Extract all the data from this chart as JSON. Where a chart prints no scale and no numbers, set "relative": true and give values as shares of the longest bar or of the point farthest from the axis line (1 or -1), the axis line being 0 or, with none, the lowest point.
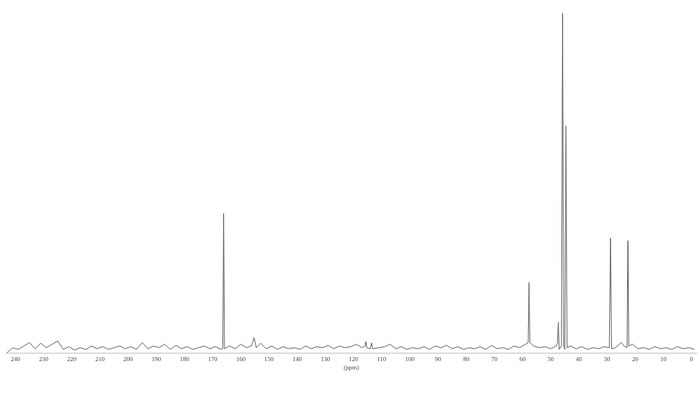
{
  "chart_data": {
    "type": "line",
    "relative": true,
    "xlabel": "(ppm)",
    "xlim": [
      243.5,
      -2
    ],
    "xticks": [
      240,
      230,
      220,
      210,
      200,
      190,
      180,
      170,
      160,
      150,
      140,
      130,
      120,
      110,
      100,
      90,
      80,
      70,
      60,
      50,
      40,
      30,
      20,
      10,
      0
    ],
    "marker": "none",
    "x": [
      243,
      241,
      239,
      237,
      235,
      233,
      231,
      229,
      227,
      225,
      223,
      221,
      219,
      217,
      215,
      213,
      211,
      209,
      207,
      205,
      203,
      201,
      199,
      197,
      195,
      193,
      191,
      189,
      187,
      185,
      183,
      181,
      179,
      177,
      175,
      173,
      171,
      169,
      167,
      166.4,
      166.1,
      165.8,
      164,
      162,
      160,
      158,
      156.2,
      155.3,
      154.5,
      153,
      151,
      149,
      147,
      145,
      143,
      141,
      139,
      137,
      135,
      133,
      131,
      129,
      127,
      125,
      123,
      121,
      119,
      117,
      115.9,
      115.6,
      115.3,
      114,
      113.6,
      113.2,
      111,
      109,
      107,
      105,
      103,
      101,
      99,
      97,
      95,
      93,
      91,
      89,
      87,
      85,
      83,
      81,
      79,
      77,
      75,
      73,
      71,
      69,
      67,
      65,
      63,
      61,
      59,
      58.0,
      57.7,
      57.4,
      56,
      54,
      52,
      50,
      48,
      47.6,
      47.3,
      47.0,
      46.2,
      45.8,
      45.4,
      45.0,
      44.6,
      44.2,
      43,
      41,
      39,
      37,
      35,
      33,
      31,
      29.2,
      28.8,
      28.4,
      27,
      25,
      24,
      22.9,
      22.6,
      22.3,
      21,
      19,
      17,
      15,
      13,
      11,
      9,
      7,
      5,
      3,
      1,
      -1
    ],
    "series": [
      {
        "color": "#555555",
        "values": [
          0,
          0.015,
          0.01,
          0.02,
          0.03,
          0.012,
          0.028,
          0.015,
          0.025,
          0.035,
          0.01,
          0.018,
          0.008,
          0.015,
          0.01,
          0.02,
          0.012,
          0.018,
          0.01,
          0.015,
          0.02,
          0.012,
          0.018,
          0.01,
          0.03,
          0.012,
          0.02,
          0.015,
          0.025,
          0.01,
          0.022,
          0.012,
          0.018,
          0.01,
          0.015,
          0.02,
          0.012,
          0.018,
          0.01,
          0.012,
          0.41,
          0.012,
          0.02,
          0.012,
          0.025,
          0.015,
          0.02,
          0.045,
          0.015,
          0.028,
          0.012,
          0.02,
          0.01,
          0.018,
          0.012,
          0.015,
          0.01,
          0.02,
          0.012,
          0.018,
          0.015,
          0.022,
          0.012,
          0.02,
          0.015,
          0.018,
          0.025,
          0.015,
          0.02,
          0.033,
          0.015,
          0.012,
          0.029,
          0.012,
          0.015,
          0.018,
          0.025,
          0.012,
          0.018,
          0.01,
          0.015,
          0.012,
          0.018,
          0.01,
          0.02,
          0.015,
          0.022,
          0.012,
          0.018,
          0.01,
          0.015,
          0.012,
          0.018,
          0.01,
          0.022,
          0.012,
          0.015,
          0.01,
          0.02,
          0.015,
          0.025,
          0.03,
          0.207,
          0.03,
          0.02,
          0.015,
          0.018,
          0.012,
          0.02,
          0.03,
          0.09,
          0.01,
          0.02,
          1.0,
          0.02,
          0.01,
          0.668,
          0.015,
          0.02,
          0.012,
          0.018,
          0.01,
          0.015,
          0.012,
          0.018,
          0.015,
          0.338,
          0.012,
          0.015,
          0.03,
          0.02,
          0.015,
          0.33,
          0.02,
          0.025,
          0.012,
          0.015,
          0.01,
          0.018,
          0.012,
          0.015,
          0.01,
          0.018,
          0.012,
          0.015,
          0.01
        ]
      }
    ]
  }
}
